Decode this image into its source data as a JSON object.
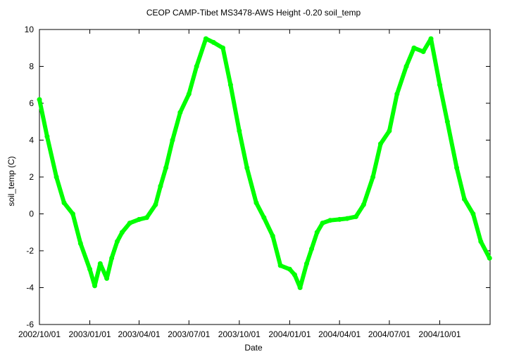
{
  "chart_data": {
    "type": "line",
    "title": "CEOP CAMP-Tibet MS3478-AWS Height -0.20 soil_temp",
    "xlabel": "Date",
    "ylabel": "soil_temp (C)",
    "x_tick_labels": [
      "2002/10/01",
      "2003/01/01",
      "2003/04/01",
      "2003/07/01",
      "2003/10/01",
      "2004/01/01",
      "2004/04/01",
      "2004/07/01",
      "2004/10/01"
    ],
    "xlim": [
      "2002-10-01",
      "2005-01-01"
    ],
    "ylim": [
      -6,
      10
    ],
    "y_ticks": [
      -6,
      -4,
      -2,
      0,
      2,
      4,
      6,
      8,
      10
    ],
    "grid": false,
    "line_color": "#00ff00",
    "series": [
      {
        "x": [
          "2002-10-01",
          "2002-10-15",
          "2002-11-01",
          "2002-11-15",
          "2002-12-01",
          "2002-12-15",
          "2003-01-01",
          "2003-01-10",
          "2003-01-20",
          "2003-02-01",
          "2003-02-10",
          "2003-02-20",
          "2003-03-01",
          "2003-03-15",
          "2003-04-01",
          "2003-04-15",
          "2003-05-01",
          "2003-05-10",
          "2003-05-20",
          "2003-06-01",
          "2003-06-15",
          "2003-07-01",
          "2003-07-15",
          "2003-08-01",
          "2003-08-15",
          "2003-09-01",
          "2003-09-15",
          "2003-10-01",
          "2003-10-15",
          "2003-11-01",
          "2003-11-15",
          "2003-12-01",
          "2003-12-15",
          "2004-01-01",
          "2004-01-10",
          "2004-01-20",
          "2004-02-01",
          "2004-02-10",
          "2004-02-20",
          "2004-03-01",
          "2004-03-15",
          "2004-04-01",
          "2004-04-15",
          "2004-05-01",
          "2004-05-15",
          "2004-06-01",
          "2004-06-15",
          "2004-07-01",
          "2004-07-15",
          "2004-08-01",
          "2004-08-15",
          "2004-09-01",
          "2004-09-15",
          "2004-10-01",
          "2004-10-15",
          "2004-11-01",
          "2004-11-15",
          "2004-12-01",
          "2004-12-15",
          "2004-12-31"
        ],
        "y": [
          6.2,
          4.2,
          2.0,
          0.6,
          0.0,
          -1.6,
          -3.0,
          -3.9,
          -2.7,
          -3.5,
          -2.4,
          -1.5,
          -1.0,
          -0.5,
          -0.3,
          -0.2,
          0.5,
          1.5,
          2.5,
          4.0,
          5.5,
          6.5,
          8.0,
          9.5,
          9.3,
          9.0,
          7.0,
          4.5,
          2.5,
          0.6,
          -0.2,
          -1.2,
          -2.8,
          -3.0,
          -3.3,
          -4.0,
          -2.7,
          -1.9,
          -1.0,
          -0.5,
          -0.35,
          -0.3,
          -0.25,
          -0.15,
          0.5,
          2.0,
          3.8,
          4.5,
          6.5,
          8.0,
          9.0,
          8.8,
          9.5,
          7.0,
          5.0,
          2.5,
          0.8,
          0.0,
          -1.5,
          -2.4
        ]
      }
    ]
  }
}
